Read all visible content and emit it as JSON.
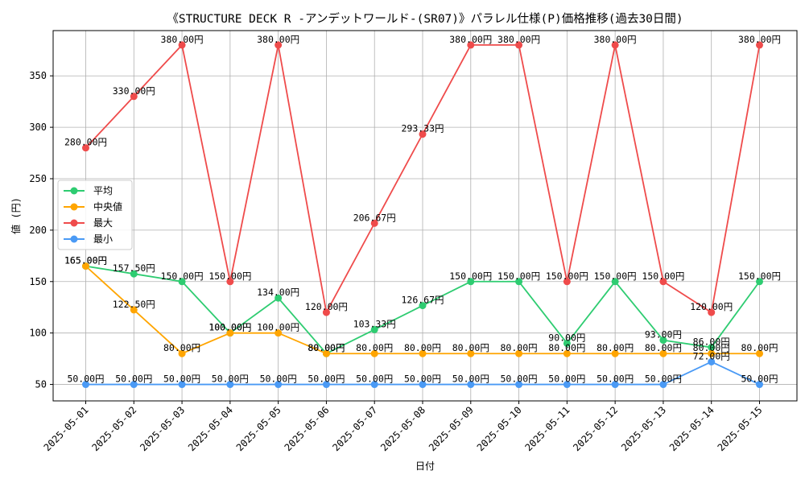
{
  "chart_data": {
    "type": "line",
    "title": "《STRUCTURE DECK R -アンデットワールド-(SR07)》パラレル仕様(P)価格推移(過去30日間)",
    "xlabel": "日付",
    "ylabel": "値 (円)",
    "categories": [
      "2025-05-01",
      "2025-05-02",
      "2025-05-03",
      "2025-05-04",
      "2025-05-05",
      "2025-05-06",
      "2025-05-07",
      "2025-05-08",
      "2025-05-09",
      "2025-05-10",
      "2025-05-11",
      "2025-05-12",
      "2025-05-13",
      "2025-05-14",
      "2025-05-15"
    ],
    "ylim": [
      34,
      394
    ],
    "yticks": [
      50,
      100,
      150,
      200,
      250,
      300,
      350
    ],
    "grid": true,
    "legend_position": "center-left",
    "series": [
      {
        "name": "平均",
        "color": "#2ecc71",
        "values": [
          165.0,
          157.5,
          150.0,
          100.0,
          134.0,
          80.0,
          103.33,
          126.67,
          150.0,
          150.0,
          90.0,
          150.0,
          93.0,
          86.0,
          150.0
        ]
      },
      {
        "name": "中央値",
        "color": "#ffa500",
        "values": [
          165.0,
          122.5,
          80.0,
          100.0,
          100.0,
          80.0,
          80.0,
          80.0,
          80.0,
          80.0,
          80.0,
          80.0,
          80.0,
          80.0,
          80.0
        ]
      },
      {
        "name": "最大",
        "color": "#ef4b4b",
        "values": [
          280.0,
          330.0,
          380.0,
          150.0,
          380.0,
          120.0,
          206.67,
          293.33,
          380.0,
          380.0,
          150.0,
          380.0,
          150.0,
          120.0,
          380.0
        ]
      },
      {
        "name": "最小",
        "color": "#4a9af5",
        "values": [
          50.0,
          50.0,
          50.0,
          50.0,
          50.0,
          50.0,
          50.0,
          50.0,
          50.0,
          50.0,
          50.0,
          50.0,
          50.0,
          72.0,
          50.0
        ]
      }
    ],
    "value_suffix": "円"
  }
}
